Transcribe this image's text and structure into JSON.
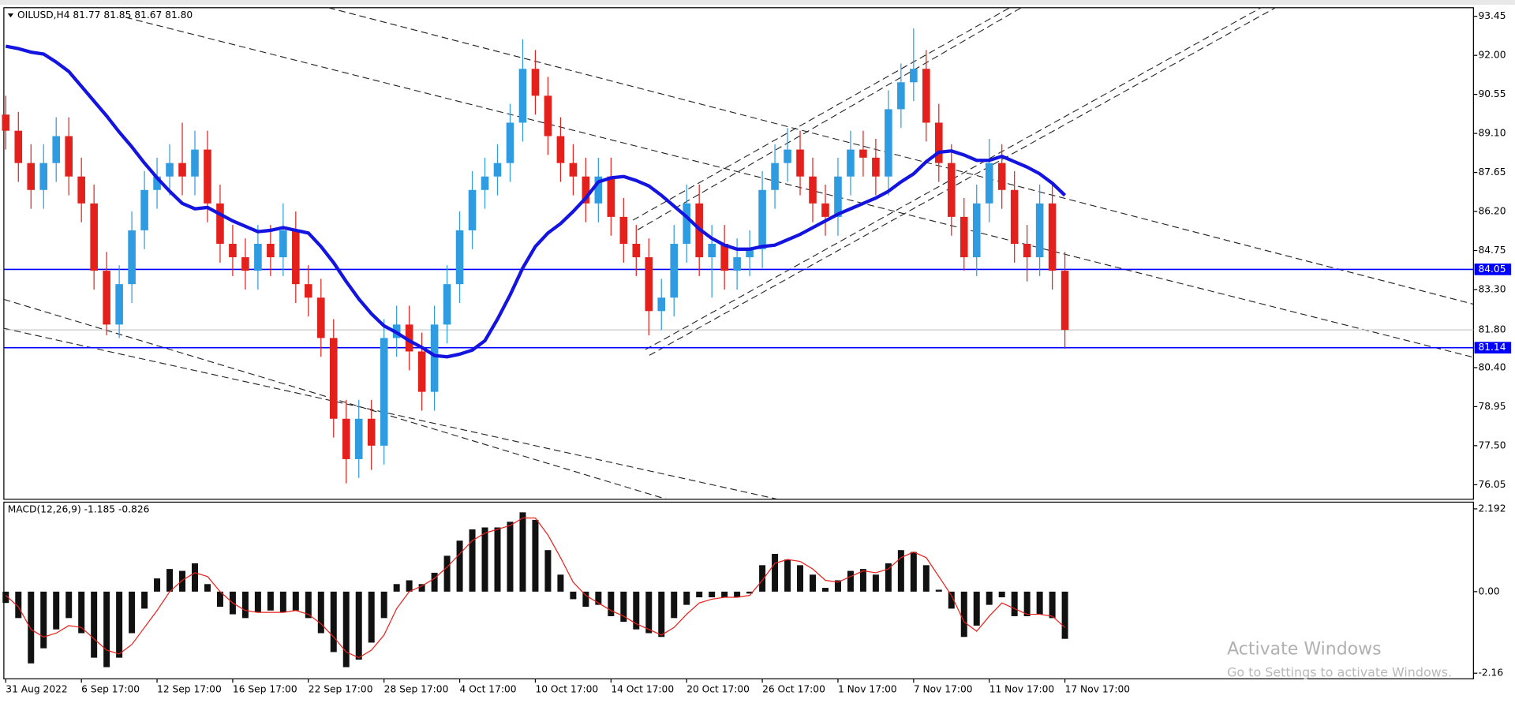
{
  "chart_data": [
    {
      "type": "candlestick",
      "title": "OILUSD,H4  81.77 81.85 81.67 81.80",
      "up_color": "#2f9be0",
      "down_color": "#e3201c",
      "ma_color": "#1414e0",
      "open": [
        89.8,
        89.2,
        88.0,
        87.0,
        88.0,
        89.0,
        87.5,
        86.5,
        84.0,
        82.0,
        83.5,
        85.5,
        87.0,
        87.5,
        88.0,
        87.5,
        88.5,
        86.5,
        85.0,
        84.5,
        84.0,
        85.0,
        84.5,
        85.5,
        83.5,
        83.0,
        81.5,
        78.5,
        77.0,
        78.5,
        77.5,
        81.5,
        82.0,
        81.0,
        79.5,
        82.0,
        83.5,
        85.5,
        87.0,
        87.5,
        88.0,
        89.5,
        91.5,
        90.5,
        89.0,
        88.0,
        87.5,
        86.5,
        87.5,
        86.0,
        85.0,
        84.5,
        82.5,
        83.0,
        85.0,
        86.5,
        84.5,
        85.0,
        84.0,
        84.5,
        84.8,
        87.0,
        88.0,
        88.5,
        87.5,
        86.5,
        86.0,
        87.5,
        88.5,
        88.2,
        87.5,
        90.0,
        91.0,
        91.5,
        89.5,
        88.0,
        86.0,
        84.5,
        86.5,
        88.0,
        87.0,
        85.0,
        84.5,
        86.5,
        84.0
      ],
      "high": [
        90.5,
        89.9,
        88.7,
        88.7,
        89.7,
        89.7,
        88.2,
        87.2,
        84.7,
        84.2,
        86.2,
        87.7,
        88.2,
        88.7,
        89.5,
        89.2,
        89.2,
        87.2,
        85.7,
        85.2,
        85.7,
        85.7,
        86.5,
        86.2,
        84.2,
        83.7,
        82.2,
        79.2,
        79.2,
        79.2,
        82.2,
        82.7,
        82.7,
        81.7,
        82.7,
        84.2,
        86.2,
        87.7,
        88.2,
        88.7,
        90.2,
        92.6,
        92.2,
        91.2,
        89.7,
        88.7,
        88.2,
        88.2,
        88.2,
        86.7,
        85.7,
        85.2,
        83.7,
        85.7,
        87.2,
        87.2,
        85.7,
        85.7,
        85.2,
        85.5,
        87.7,
        88.7,
        89.3,
        89.2,
        88.2,
        87.2,
        88.2,
        89.2,
        89.2,
        88.9,
        90.7,
        91.7,
        93.0,
        92.2,
        90.2,
        88.7,
        86.7,
        87.2,
        88.9,
        88.7,
        87.7,
        85.7,
        87.2,
        87.2,
        84.7
      ],
      "low": [
        88.5,
        87.3,
        86.3,
        86.3,
        87.3,
        86.8,
        85.8,
        83.3,
        81.6,
        81.5,
        82.8,
        84.8,
        86.3,
        86.8,
        86.8,
        86.8,
        85.8,
        84.3,
        83.8,
        83.3,
        83.3,
        83.8,
        83.8,
        82.8,
        82.3,
        80.8,
        77.8,
        76.1,
        76.3,
        76.6,
        76.8,
        80.8,
        80.3,
        78.8,
        78.8,
        81.3,
        82.8,
        84.8,
        86.3,
        86.8,
        87.3,
        88.8,
        89.8,
        88.3,
        87.3,
        86.8,
        85.8,
        85.8,
        85.3,
        84.3,
        83.8,
        81.6,
        81.8,
        82.3,
        84.3,
        83.8,
        83.0,
        83.3,
        83.3,
        83.8,
        84.1,
        86.3,
        87.3,
        86.8,
        85.8,
        85.3,
        85.3,
        86.8,
        87.5,
        86.8,
        86.8,
        89.3,
        90.3,
        88.8,
        87.3,
        85.3,
        84.0,
        83.8,
        85.8,
        86.3,
        84.3,
        83.6,
        83.8,
        83.3,
        81.1
      ],
      "close": [
        89.2,
        88.0,
        87.0,
        88.0,
        89.0,
        87.5,
        86.5,
        84.0,
        82.0,
        83.5,
        85.5,
        87.0,
        87.5,
        88.0,
        87.5,
        88.5,
        86.5,
        85.0,
        84.5,
        84.0,
        85.0,
        84.5,
        85.5,
        83.5,
        83.0,
        81.5,
        78.5,
        77.0,
        78.5,
        77.5,
        81.5,
        82.0,
        81.0,
        79.5,
        82.0,
        83.5,
        85.5,
        87.0,
        87.5,
        88.0,
        89.5,
        91.5,
        90.5,
        89.0,
        88.0,
        87.5,
        86.5,
        87.5,
        86.0,
        85.0,
        84.5,
        82.5,
        83.0,
        85.0,
        86.5,
        84.5,
        85.0,
        84.0,
        84.5,
        84.8,
        87.0,
        88.0,
        88.5,
        87.5,
        86.5,
        86.0,
        87.5,
        88.5,
        88.2,
        87.5,
        90.0,
        91.0,
        91.5,
        89.5,
        88.0,
        86.0,
        84.5,
        86.5,
        88.0,
        87.0,
        85.0,
        84.5,
        86.5,
        84.0,
        81.8
      ],
      "ma": [
        92.34,
        92.25,
        92.12,
        92.05,
        91.75,
        91.4,
        90.85,
        90.3,
        89.75,
        89.15,
        88.6,
        88.0,
        87.45,
        86.95,
        86.5,
        86.3,
        86.35,
        86.1,
        85.85,
        85.65,
        85.45,
        85.5,
        85.6,
        85.5,
        85.4,
        84.9,
        84.3,
        83.6,
        82.95,
        82.4,
        81.95,
        81.7,
        81.4,
        81.15,
        80.85,
        80.8,
        80.9,
        81.05,
        81.4,
        82.2,
        83.1,
        84.1,
        84.9,
        85.4,
        85.75,
        86.2,
        86.7,
        87.3,
        87.45,
        87.5,
        87.35,
        87.15,
        86.8,
        86.4,
        86.0,
        85.55,
        85.2,
        84.95,
        84.8,
        84.8,
        84.9,
        84.95,
        85.15,
        85.35,
        85.6,
        85.85,
        86.1,
        86.3,
        86.5,
        86.7,
        86.95,
        87.3,
        87.6,
        88.05,
        88.4,
        88.45,
        88.3,
        88.1,
        88.1,
        88.25,
        88.05,
        87.85,
        87.6,
        87.25,
        86.8
      ],
      "xlim": [
        -0.15,
        116.4
      ],
      "ylim": [
        75.51,
        93.77
      ],
      "xticks": [
        {
          "value": 0,
          "label": "31 Aug 2022"
        },
        {
          "value": 6,
          "label": "6 Sep 17:00"
        },
        {
          "value": 12,
          "label": "12 Sep 17:00"
        },
        {
          "value": 18,
          "label": "16 Sep 17:00"
        },
        {
          "value": 24,
          "label": "22 Sep 17:00"
        },
        {
          "value": 30,
          "label": "28 Sep 17:00"
        },
        {
          "value": 36,
          "label": "4 Oct 17:00"
        },
        {
          "value": 42,
          "label": "10 Oct 17:00"
        },
        {
          "value": 48,
          "label": "14 Oct 17:00"
        },
        {
          "value": 54,
          "label": "20 Oct 17:00"
        },
        {
          "value": 60,
          "label": "26 Oct 17:00"
        },
        {
          "value": 66,
          "label": "1 Nov 17:00"
        },
        {
          "value": 72,
          "label": "7 Nov 17:00"
        },
        {
          "value": 78,
          "label": "11 Nov 17:00"
        },
        {
          "value": 84,
          "label": "17 Nov 17:00"
        }
      ],
      "yticks": [
        {
          "value": 93.45,
          "label": "93.45"
        },
        {
          "value": 92,
          "label": "92.00"
        },
        {
          "value": 90.55,
          "label": "90.55"
        },
        {
          "value": 89.1,
          "label": "89.10"
        },
        {
          "value": 87.65,
          "label": "87.65"
        },
        {
          "value": 86.2,
          "label": "86.20"
        },
        {
          "value": 84.75,
          "label": "84.75"
        },
        {
          "value": 83.3,
          "label": "83.30"
        },
        {
          "value": 80.4,
          "label": "80.40"
        },
        {
          "value": 78.95,
          "label": "78.95"
        },
        {
          "value": 77.5,
          "label": "77.50"
        },
        {
          "value": 76.05,
          "label": "76.05"
        }
      ],
      "hlines": [
        {
          "value": 84.05,
          "label": "84.05"
        },
        {
          "value": 81.14,
          "label": "81.14"
        }
      ],
      "hline_color": "#0000ff",
      "last_price": {
        "value": 81.8,
        "label": "81.80"
      }
    },
    {
      "type": "macd",
      "title": "MACD(12,26,9) -1.185 -0.826",
      "bar_color": "#111111",
      "signal_color": "#e8201c",
      "histogram": [
        -0.3,
        -0.7,
        -1.9,
        -1.5,
        -1.0,
        -0.7,
        -1.1,
        -1.75,
        -2.0,
        -1.75,
        -1.1,
        -0.45,
        0.35,
        0.6,
        0.55,
        0.75,
        0.2,
        -0.4,
        -0.6,
        -0.7,
        -0.55,
        -0.5,
        -0.55,
        -0.5,
        -0.7,
        -1.1,
        -1.6,
        -2.0,
        -1.8,
        -1.35,
        -0.7,
        0.2,
        0.3,
        0.2,
        0.5,
        0.95,
        1.35,
        1.65,
        1.7,
        1.7,
        1.85,
        2.1,
        1.9,
        1.1,
        0.45,
        -0.2,
        -0.4,
        -0.35,
        -0.65,
        -0.8,
        -1.0,
        -1.1,
        -1.2,
        -0.7,
        -0.35,
        -0.15,
        -0.15,
        -0.15,
        -0.15,
        -0.05,
        0.7,
        1.0,
        0.85,
        0.7,
        0.45,
        0.1,
        0.3,
        0.55,
        0.6,
        0.45,
        0.75,
        1.1,
        1.05,
        0.7,
        0.05,
        -0.45,
        -1.2,
        -0.9,
        -0.35,
        -0.15,
        -0.65,
        -0.65,
        -0.6,
        -0.7,
        -1.25
      ],
      "signal": [
        -0.1,
        -0.4,
        -1.0,
        -1.2,
        -1.1,
        -0.9,
        -0.95,
        -1.25,
        -1.55,
        -1.65,
        -1.4,
        -0.95,
        -0.5,
        0.0,
        0.3,
        0.5,
        0.4,
        0.0,
        -0.3,
        -0.5,
        -0.55,
        -0.55,
        -0.55,
        -0.5,
        -0.6,
        -0.85,
        -1.2,
        -1.6,
        -1.75,
        -1.55,
        -1.15,
        -0.45,
        0.0,
        0.15,
        0.35,
        0.65,
        1.0,
        1.35,
        1.55,
        1.65,
        1.75,
        1.95,
        1.95,
        1.5,
        0.9,
        0.25,
        -0.1,
        -0.3,
        -0.5,
        -0.65,
        -0.85,
        -1.0,
        -1.15,
        -0.95,
        -0.6,
        -0.3,
        -0.2,
        -0.15,
        -0.15,
        -0.1,
        0.3,
        0.75,
        0.85,
        0.8,
        0.6,
        0.3,
        0.25,
        0.4,
        0.55,
        0.5,
        0.6,
        0.9,
        1.05,
        0.9,
        0.4,
        -0.1,
        -0.8,
        -1.05,
        -0.65,
        -0.3,
        -0.45,
        -0.6,
        -0.6,
        -0.65,
        -0.95
      ],
      "ylim": [
        -2.31,
        2.37
      ],
      "yticks": [
        {
          "value": 2.192,
          "label": "2.192"
        },
        {
          "value": 0,
          "label": "0.00"
        },
        {
          "value": -2.16,
          "label": "-2.16"
        }
      ]
    }
  ],
  "watermark": {
    "title": "Activate Windows",
    "subtitle": "Go to Settings to activate Windows."
  }
}
